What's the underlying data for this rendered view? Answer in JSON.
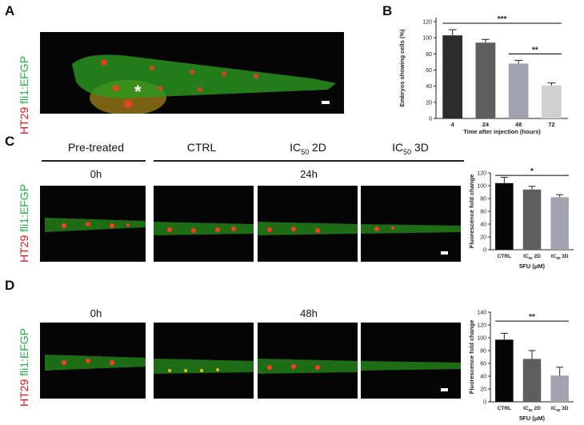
{
  "panels": {
    "A": "A",
    "B": "B",
    "C": "C",
    "D": "D"
  },
  "fish_label": {
    "red": "HT29",
    "green": "fli1:EFGP"
  },
  "asterisk": "*",
  "headers": {
    "pre": "Pre-treated",
    "ctrl": "CTRL",
    "ic50_2d": "IC",
    "ic50_2d_sub": "50",
    "ic50_2d_suffix": " 2D",
    "ic50_3d": "IC",
    "ic50_3d_sub": "50",
    "ic50_3d_suffix": " 3D"
  },
  "times": {
    "c_pre": "0h",
    "c_post": "24h",
    "d_pre": "0h",
    "d_post": "48h"
  },
  "colors": {
    "red": "#e3141a",
    "green": "#21b24a",
    "fish_bg": "#050505"
  },
  "chart_data": [
    {
      "id": "B",
      "type": "bar",
      "categories": [
        "4",
        "24",
        "48",
        "72"
      ],
      "values": [
        103,
        94,
        68,
        41
      ],
      "errors": [
        7,
        4,
        4,
        3
      ],
      "bar_colors": [
        "#2b2b2b",
        "#5e5e5e",
        "#a2a2b0",
        "#d0d0d0"
      ],
      "xlabel": "Time after injection (hours)",
      "ylabel": "Embryos showing cells (%)",
      "ylim": [
        0,
        125
      ],
      "yticks": [
        0,
        20,
        40,
        60,
        80,
        100,
        120
      ],
      "significance": [
        {
          "from": 0,
          "to": 3,
          "label": "***",
          "y": 118
        },
        {
          "from": 2,
          "to": 3,
          "label": "**",
          "y": 80
        }
      ]
    },
    {
      "id": "C",
      "type": "bar",
      "categories": [
        "CTRL",
        "IC50 2D",
        "IC50 3D"
      ],
      "cat_main": [
        "CTRL",
        "IC",
        "IC"
      ],
      "cat_sub": [
        "",
        "50",
        "50"
      ],
      "cat_suffix": [
        "",
        " 2D",
        " 3D"
      ],
      "values": [
        104,
        94,
        82
      ],
      "errors": [
        9,
        5,
        4
      ],
      "bar_colors": [
        "#050505",
        "#5e5e5e",
        "#a2a2b0"
      ],
      "xlabel": "5FU (μM)",
      "ylabel": "Fluorescence fold change",
      "ylim": [
        0,
        120
      ],
      "yticks": [
        0,
        20,
        40,
        60,
        80,
        100,
        120
      ],
      "significance": [
        {
          "from": 0,
          "to": 2,
          "label": "*",
          "y": 116
        }
      ]
    },
    {
      "id": "D",
      "type": "bar",
      "categories": [
        "CTRL",
        "IC50 2D",
        "IC50 3D"
      ],
      "cat_main": [
        "CTRL",
        "IC",
        "IC"
      ],
      "cat_sub": [
        "",
        "50",
        "50"
      ],
      "cat_suffix": [
        "",
        " 2D",
        " 3D"
      ],
      "values": [
        97,
        67,
        41
      ],
      "errors": [
        10,
        13,
        13
      ],
      "bar_colors": [
        "#050505",
        "#5e5e5e",
        "#a2a2b0"
      ],
      "xlabel": "5FU (μM)",
      "ylabel": "Fluorescence fold change",
      "ylim": [
        0,
        140
      ],
      "yticks": [
        0,
        20,
        40,
        60,
        80,
        100,
        120,
        140
      ],
      "significance": [
        {
          "from": 0,
          "to": 2,
          "label": "**",
          "y": 126
        }
      ]
    }
  ]
}
